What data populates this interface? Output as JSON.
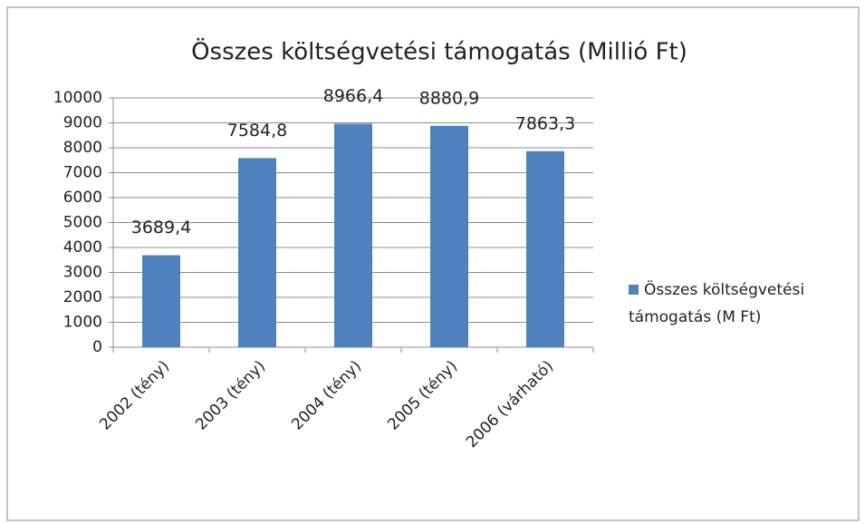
{
  "chart_data": {
    "type": "bar",
    "title": "Összes költségvetési támogatás (Millió  Ft)",
    "categories": [
      "2002 (tény)",
      "2003 (tény)",
      "2004 (tény)",
      "2005 (tény)",
      "2006 (várható)"
    ],
    "series": [
      {
        "name": "Összes költségvetési támogatás (M Ft)",
        "color": "#4f81bd",
        "values": [
          3689.4,
          7584.8,
          8966.4,
          8880.9,
          7863.3
        ],
        "value_labels": [
          "3689,4",
          "7584,8",
          "8966,4",
          "8880,9",
          "7863,3"
        ]
      }
    ],
    "ylim": [
      0,
      10000
    ],
    "yticks": [
      0,
      1000,
      2000,
      3000,
      4000,
      5000,
      6000,
      7000,
      8000,
      9000,
      10000
    ],
    "grid": true,
    "legend": "right"
  }
}
